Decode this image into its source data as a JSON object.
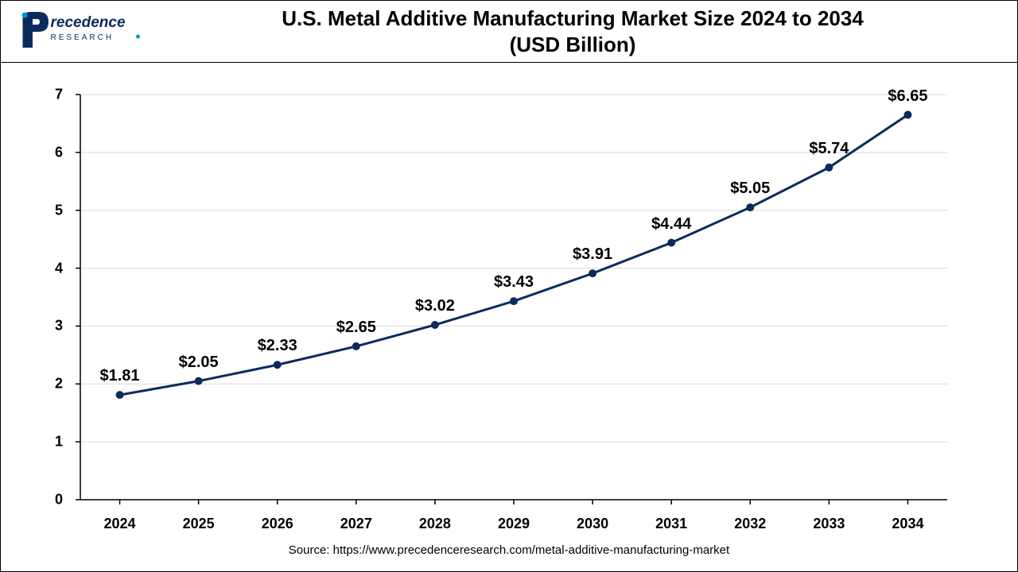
{
  "title_line1": "U.S. Metal Additive Manufacturing Market Size 2024 to 2034",
  "title_line2": "(USD Billion)",
  "source": "Source: https://www.precedenceresearch.com/metal-additive-manufacturing-market",
  "logo": {
    "text_top": "recedence",
    "text_bottom": "R E S E A R C H",
    "p_color": "#0a2b5c",
    "text_color": "#0a2b5c",
    "accent_color": "#0095d9"
  },
  "chart": {
    "type": "line",
    "line_color": "#0a2b5c",
    "marker_color": "#0a2b5c",
    "marker_size": 5,
    "line_width": 3,
    "background_color": "#ffffff",
    "grid_color": "#d9d9d9",
    "axis_color": "#000000",
    "ylim": [
      0,
      7
    ],
    "ytick_step": 1,
    "yticks": [
      0,
      1,
      2,
      3,
      4,
      5,
      6,
      7
    ],
    "categories": [
      "2024",
      "2025",
      "2026",
      "2027",
      "2028",
      "2029",
      "2030",
      "2031",
      "2032",
      "2033",
      "2034"
    ],
    "values": [
      1.81,
      2.05,
      2.33,
      2.65,
      3.02,
      3.43,
      3.91,
      4.44,
      5.05,
      5.74,
      6.65
    ],
    "labels": [
      "$1.81",
      "$2.05",
      "$2.33",
      "$2.65",
      "$3.02",
      "$3.43",
      "$3.91",
      "$4.44",
      "$5.05",
      "$5.74",
      "$6.65"
    ],
    "label_fontsize": 20,
    "tick_fontsize": 18,
    "title_fontsize": 26
  }
}
